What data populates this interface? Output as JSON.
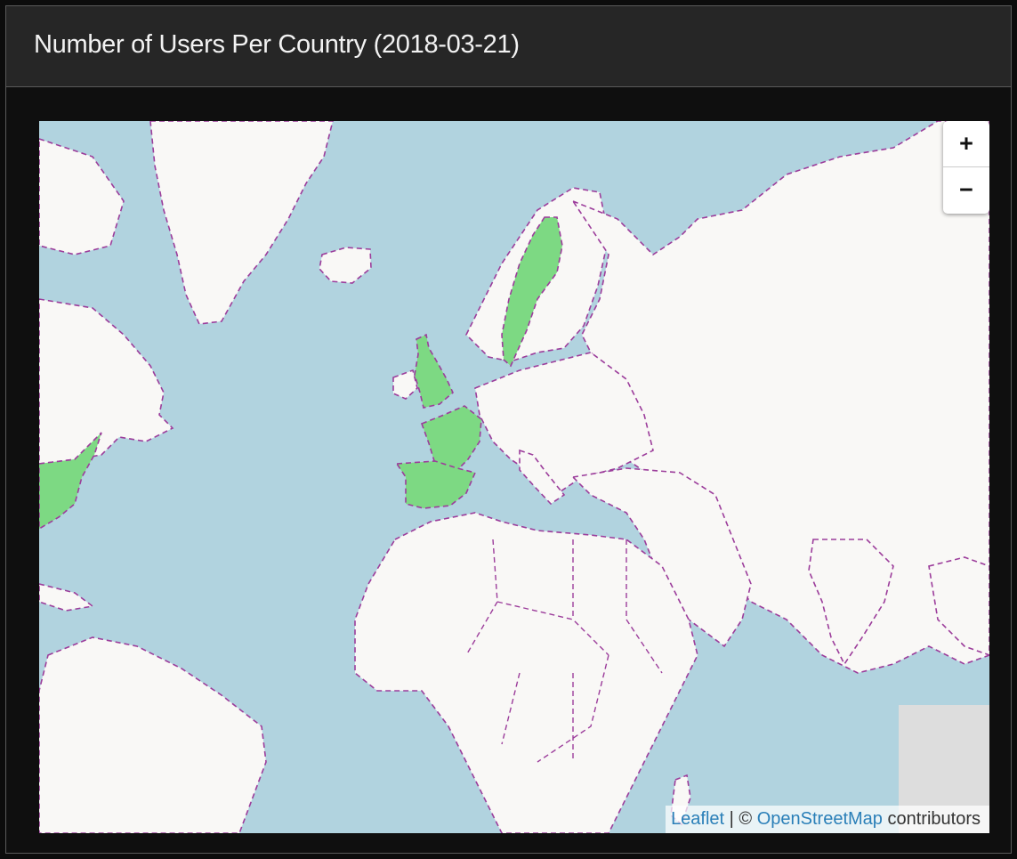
{
  "panel": {
    "title": "Number of Users Per Country (2018-03-21)"
  },
  "map": {
    "zoom_in_label": "+",
    "zoom_out_label": "−",
    "attribution": {
      "leaflet": "Leaflet",
      "separator": " | © ",
      "osm": "OpenStreetMap",
      "suffix": " contributors"
    },
    "colors": {
      "ocean": "#b1d3df",
      "land": "#f9f8f6",
      "highlight": "#7dd983",
      "border": "#9c3d9b"
    },
    "highlighted_countries": [
      "United Kingdom",
      "France",
      "Spain",
      "Sweden",
      "United States"
    ]
  }
}
